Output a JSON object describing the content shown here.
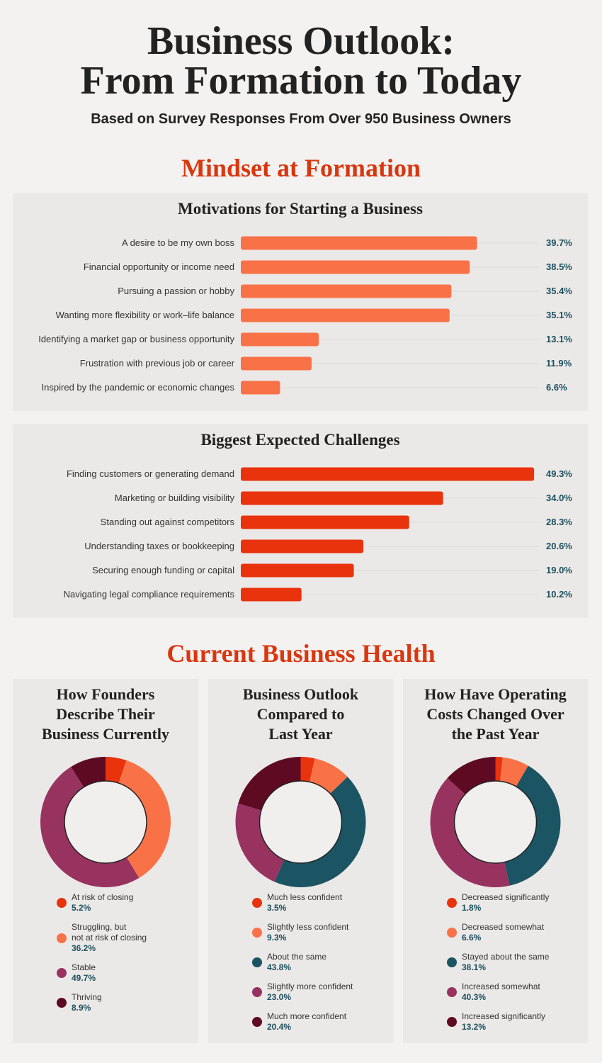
{
  "title": "Business Outlook:\nFrom Formation to Today",
  "subtitle": "Based on Survey Responses From Over 950 Business Owners",
  "section_titles": [
    "Mindset at Formation",
    "Current Business Health"
  ],
  "chart_data": [
    {
      "type": "bar",
      "title": "Motivations for Starting a Business",
      "categories": [
        "A desire to be my own boss",
        "Financial opportunity or income need",
        "Pursuing a passion or hobby",
        "Wanting more flexibility or work–life balance",
        "Identifying a market gap or business opportunity",
        "Frustration with previous job or career",
        "Inspired by the pandemic or economic changes"
      ],
      "values": [
        39.7,
        38.5,
        35.4,
        35.1,
        13.1,
        11.9,
        6.6
      ],
      "value_labels": [
        "39.7%",
        "38.5%",
        "35.4%",
        "35.1%",
        "13.1%",
        "11.9%",
        "6.6%"
      ],
      "color": "#f97247",
      "xlim": [
        0,
        50
      ]
    },
    {
      "type": "bar",
      "title": "Biggest Expected Challenges",
      "categories": [
        "Finding customers or generating demand",
        "Marketing or building visibility",
        "Standing out against competitors",
        "Understanding taxes or bookkeeping",
        "Securing enough funding or capital",
        "Navigating legal compliance requirements"
      ],
      "values": [
        49.3,
        34.0,
        28.3,
        20.6,
        19.0,
        10.2
      ],
      "value_labels": [
        "49.3%",
        "34.0%",
        "28.3%",
        "20.6%",
        "19.0%",
        "10.2%"
      ],
      "color": "#e8330c",
      "xlim": [
        0,
        50
      ]
    },
    {
      "type": "pie",
      "title": "How Founders\nDescribe Their\nBusiness Currently",
      "categories": [
        "At risk of closing",
        "Struggling, but\nnot at risk of closing",
        "Stable",
        "Thriving"
      ],
      "values": [
        5.2,
        36.2,
        49.7,
        8.9
      ],
      "value_labels": [
        "5.2%",
        "36.2%",
        "49.7%",
        "8.9%"
      ],
      "colors": [
        "#e8330c",
        "#f97247",
        "#98335f",
        "#5e0a22"
      ]
    },
    {
      "type": "pie",
      "title": "Business Outlook\nCompared to\nLast Year",
      "categories": [
        "Much less confident",
        "Slightly less confident",
        "About the same",
        "Slightly more confident",
        "Much more confident"
      ],
      "values": [
        3.5,
        9.3,
        43.8,
        23.0,
        20.4
      ],
      "value_labels": [
        "3.5%",
        "9.3%",
        "43.8%",
        "23.0%",
        "20.4%"
      ],
      "colors": [
        "#e8330c",
        "#f97247",
        "#1b5462",
        "#98335f",
        "#5e0a22"
      ]
    },
    {
      "type": "pie",
      "title": "How Have Operating\nCosts Changed Over\nthe Past Year",
      "categories": [
        "Decreased significantly",
        "Decreased somewhat",
        "Stayed about the same",
        "Increased somewhat",
        "Increased significantly"
      ],
      "values": [
        1.8,
        6.6,
        38.1,
        40.3,
        13.2
      ],
      "value_labels": [
        "1.8%",
        "6.6%",
        "38.1%",
        "40.3%",
        "13.2%"
      ],
      "colors": [
        "#e8330c",
        "#f97247",
        "#1b5462",
        "#98335f",
        "#5e0a22"
      ]
    }
  ]
}
